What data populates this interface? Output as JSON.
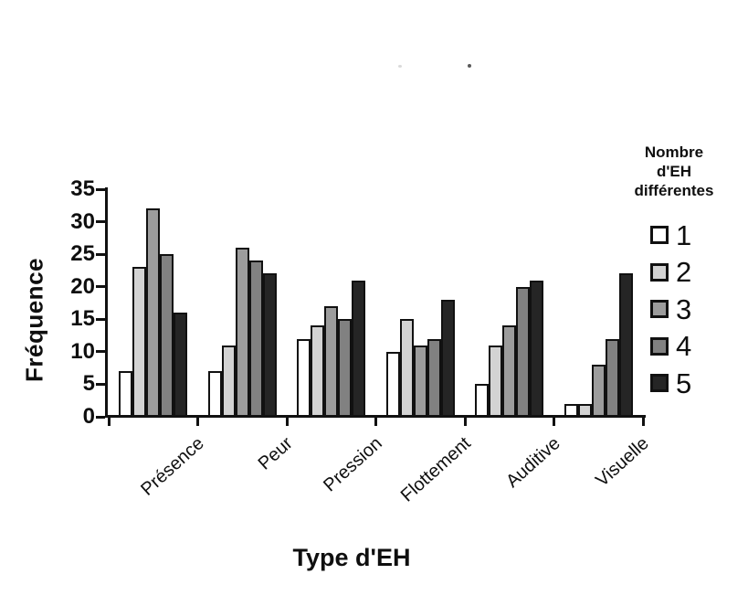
{
  "chart_data": {
    "type": "bar",
    "title": "",
    "xlabel": "Type d'EH",
    "ylabel": "Fréquence",
    "categories": [
      "Présence",
      "Peur",
      "Pression",
      "Flottement",
      "Auditive",
      "Visuelle"
    ],
    "series": [
      {
        "name": "1",
        "color": "#ffffff",
        "values": [
          7,
          7,
          12,
          10,
          5,
          2
        ]
      },
      {
        "name": "2",
        "color": "#d3d3d3",
        "values": [
          23,
          11,
          14,
          15,
          11,
          2
        ]
      },
      {
        "name": "3",
        "color": "#9c9c9c",
        "values": [
          32,
          26,
          17,
          11,
          14,
          8
        ]
      },
      {
        "name": "4",
        "color": "#818181",
        "values": [
          25,
          24,
          15,
          12,
          20,
          12
        ]
      },
      {
        "name": "5",
        "color": "#252525",
        "values": [
          16,
          22,
          21,
          18,
          21,
          22
        ]
      }
    ],
    "legend_title": "Nombre d'EH différentes",
    "legend_title_lines": [
      "Nombre",
      "d'EH",
      "différentes"
    ],
    "legend_labels": [
      "1",
      "2",
      "3",
      "4",
      "5"
    ],
    "ylim": [
      0,
      35
    ],
    "ytick_step": 5,
    "yticks": [
      0,
      5,
      10,
      15,
      20,
      25,
      30,
      35
    ],
    "grid": false,
    "legend_position": "right",
    "axis_color": "#111111",
    "bar_border_color": "#111111"
  }
}
